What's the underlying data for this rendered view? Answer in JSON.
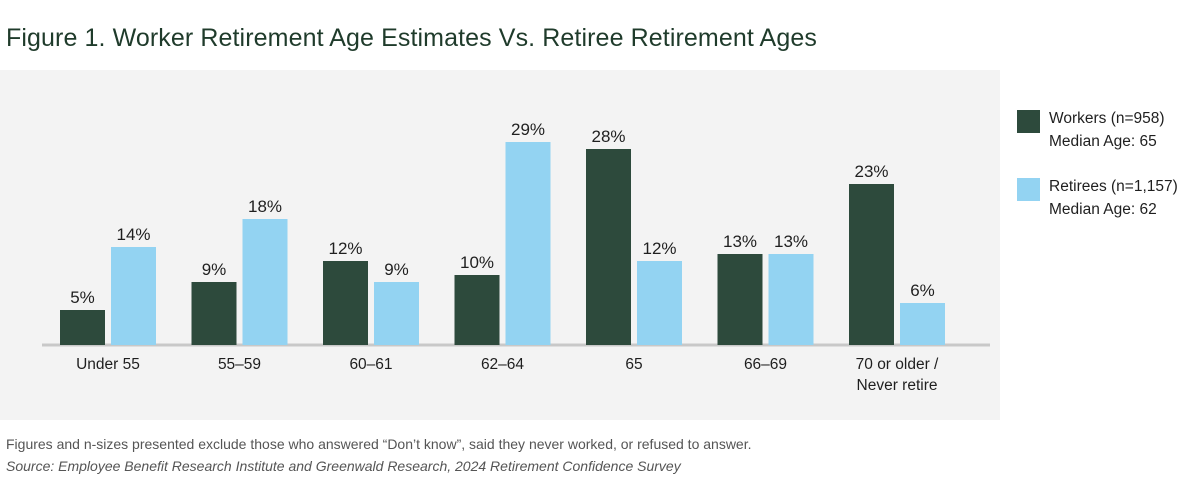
{
  "title": "Figure 1. Worker Retirement Age Estimates Vs. Retiree Retirement Ages",
  "colors": {
    "workers": "#2d4a3c",
    "retirees": "#93d3f2",
    "panel": "#f3f3f3",
    "axis": "#c8c8c8"
  },
  "legend": {
    "workers_line1": "Workers (n=958)",
    "workers_line2": "Median Age: 65",
    "retirees_line1": "Retirees (n=1,157)",
    "retirees_line2": "Median Age: 62"
  },
  "footnote": "Figures and n-sizes presented exclude those who answered “Don’t know”, said they never worked, or refused to answer.",
  "source": "Source: Employee Benefit Research Institute and Greenwald Research, 2024 Retirement Confidence Survey",
  "chart_data": {
    "type": "bar",
    "title": "Figure 1. Worker Retirement Age Estimates Vs. Retiree Retirement Ages",
    "xlabel": "",
    "ylabel": "",
    "ylim": [
      0,
      30
    ],
    "grid": false,
    "legend_position": "right",
    "categories": [
      "Under 55",
      "55–59",
      "60–61",
      "62–64",
      "65",
      "66–69",
      "70 or older /\nNever retire"
    ],
    "series": [
      {
        "name": "Workers (n=958)",
        "values": [
          5,
          9,
          12,
          10,
          28,
          13,
          23
        ],
        "labels": [
          "5%",
          "9%",
          "12%",
          "10%",
          "28%",
          "13%",
          "23%"
        ]
      },
      {
        "name": "Retirees (n=1,157)",
        "values": [
          14,
          18,
          9,
          29,
          12,
          13,
          6
        ],
        "labels": [
          "14%",
          "18%",
          "9%",
          "29%",
          "12%",
          "13%",
          "6%"
        ]
      }
    ]
  }
}
